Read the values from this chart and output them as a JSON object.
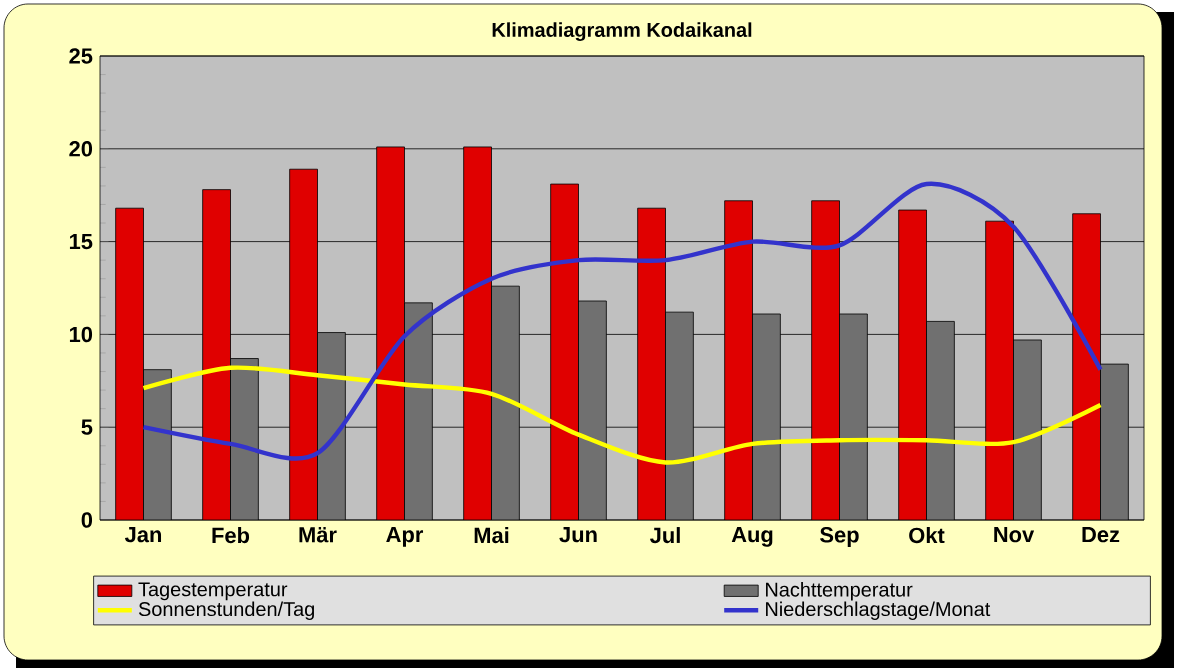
{
  "chart_data": {
    "type": "bar",
    "title": "Klimadiagramm Kodaikanal",
    "categories": [
      "Jan",
      "Feb",
      "Mär",
      "Apr",
      "Mai",
      "Jun",
      "Jul",
      "Aug",
      "Sep",
      "Okt",
      "Nov",
      "Dez"
    ],
    "series": [
      {
        "name": "Tagestemperatur",
        "color": "#e00000",
        "values": [
          16.8,
          17.8,
          18.9,
          20.1,
          20.1,
          18.1,
          16.8,
          17.2,
          17.2,
          16.7,
          16.1,
          16.5
        ]
      },
      {
        "name": "Nachttemperatur",
        "color": "#707070",
        "values": [
          8.1,
          8.7,
          10.1,
          11.7,
          12.6,
          11.8,
          11.2,
          11.1,
          11.1,
          10.7,
          9.7,
          8.4
        ]
      },
      {
        "name": "Sonnenstunden/Tag",
        "type": "line",
        "color": "#ffff00",
        "values": [
          7.1,
          8.2,
          7.8,
          7.3,
          6.8,
          4.6,
          3.1,
          4.1,
          4.3,
          4.3,
          4.2,
          6.2
        ]
      },
      {
        "name": "Niederschlagstage/Monat",
        "type": "line",
        "color": "#3333cc",
        "values": [
          5.0,
          4.1,
          3.6,
          9.9,
          13.0,
          14.0,
          14.0,
          15.0,
          14.8,
          18.1,
          15.8,
          8.1
        ]
      }
    ],
    "ylim": [
      0,
      25
    ],
    "yticks": [
      0,
      5,
      10,
      15,
      20,
      25
    ],
    "grid": "y",
    "legend": "bottom",
    "marker": "none",
    "line_style": "solid"
  }
}
